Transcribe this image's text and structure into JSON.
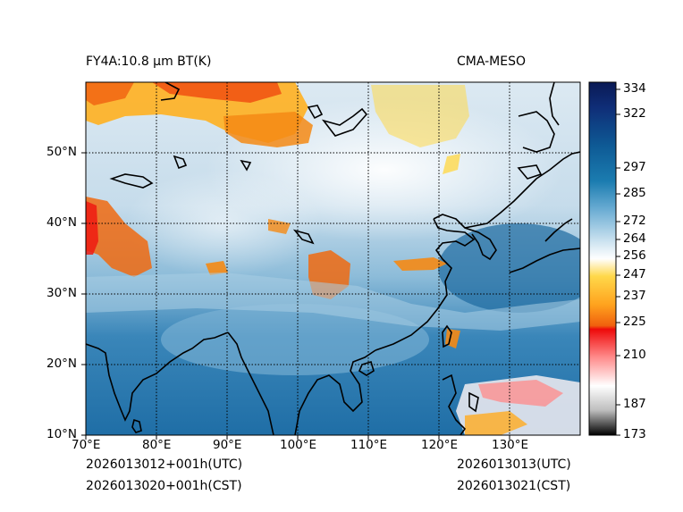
{
  "header": {
    "left_title": "FY4A:10.8 µm BT(K)",
    "right_title": "CMA-MESO"
  },
  "footer": {
    "init_utc": "2026013012+001h(UTC)",
    "init_cst": "2026013020+001h(CST)",
    "valid_utc": "2026013013(UTC)",
    "valid_cst": "2026013021(CST)"
  },
  "map": {
    "lon_range": [
      70,
      140
    ],
    "lat_range": [
      10,
      60
    ],
    "lon_labels": [
      "70°E",
      "80°E",
      "90°E",
      "100°E",
      "110°E",
      "120°E",
      "130°E"
    ],
    "lat_labels": [
      "10°N",
      "20°N",
      "30°N",
      "40°N",
      "50°N"
    ]
  },
  "colorbar": {
    "tick_labels": [
      "334",
      "322",
      "297",
      "285",
      "272",
      "264",
      "256",
      "247",
      "237",
      "225",
      "210",
      "187",
      "173"
    ],
    "colors": [
      "#0a1a55",
      "#0d2e7a",
      "#0f4a8f",
      "#11639f",
      "#1b7cb0",
      "#4f9ccb",
      "#8fc0df",
      "#d6e8f3",
      "#ffffff",
      "#ffd84a",
      "#ffab1f",
      "#f06a10",
      "#ee1010",
      "#ff8a8a",
      "#ffd6d6",
      "#ffffff",
      "#cfcfcf",
      "#7d7d7d",
      "#000000"
    ]
  }
}
